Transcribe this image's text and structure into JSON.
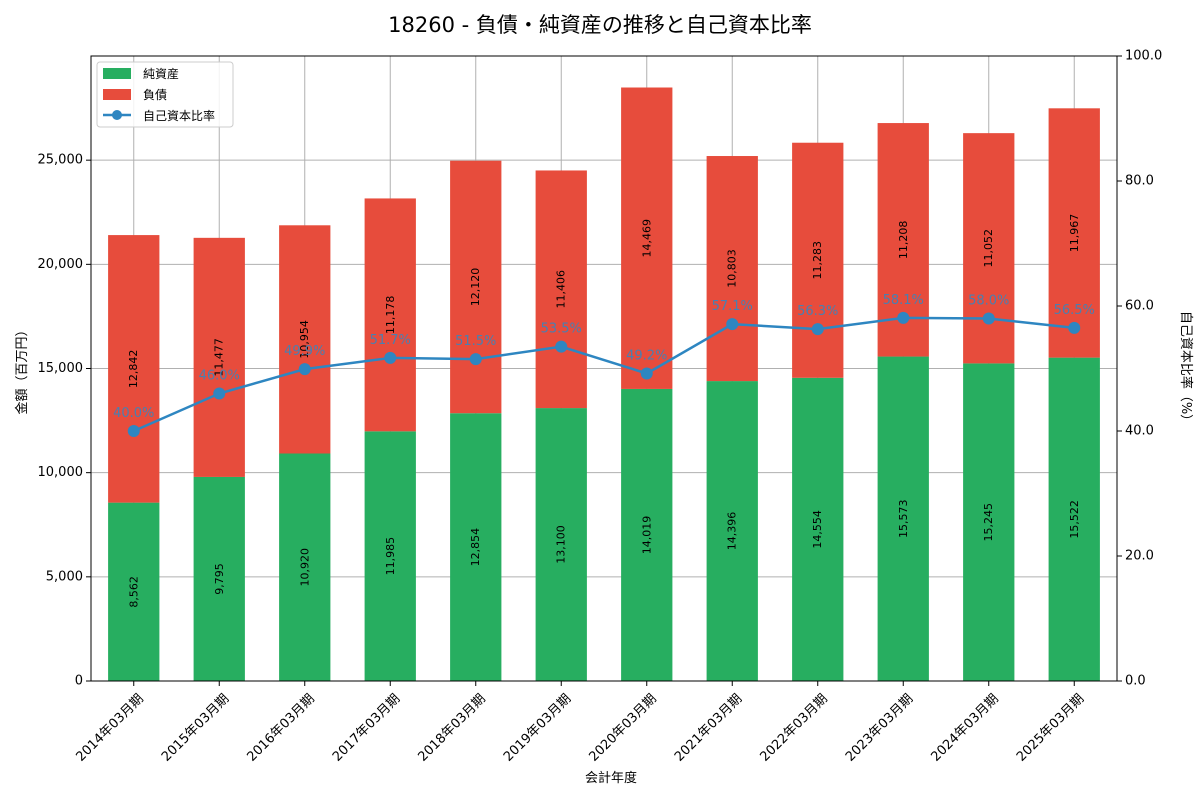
{
  "chart_data": {
    "type": "bar",
    "title": "18260 - 負債・純資産の推移と自己資本比率",
    "xlabel": "会計年度",
    "ylabel": "金額（百万円）",
    "y2label": "自己資本比率（%）",
    "stacked": true,
    "grid": true,
    "legend_position": "top-left",
    "ylim": [
      0,
      30000
    ],
    "y2lim": [
      0,
      100
    ],
    "yticks": [
      0,
      5000,
      10000,
      15000,
      20000,
      25000
    ],
    "ytick_labels": [
      "0",
      "5,000",
      "10,000",
      "15,000",
      "20,000",
      "25,000"
    ],
    "y2ticks": [
      0,
      20,
      40,
      60,
      80,
      100
    ],
    "y2tick_labels": [
      "0.0",
      "20.0",
      "40.0",
      "60.0",
      "80.0",
      "100.0"
    ],
    "categories": [
      "2014年03月期",
      "2015年03月期",
      "2016年03月期",
      "2017年03月期",
      "2018年03月期",
      "2019年03月期",
      "2020年03月期",
      "2021年03月期",
      "2022年03月期",
      "2023年03月期",
      "2024年03月期",
      "2025年03月期"
    ],
    "series": [
      {
        "name": "純資産",
        "kind": "bar",
        "color": "#27ae60",
        "values": [
          8562,
          9795,
          10920,
          11985,
          12854,
          13100,
          14019,
          14396,
          14554,
          15573,
          15245,
          15522
        ],
        "labels": [
          "8,562",
          "9,795",
          "10,920",
          "11,985",
          "12,854",
          "13,100",
          "14,019",
          "14,396",
          "14,554",
          "15,573",
          "15,245",
          "15,522"
        ]
      },
      {
        "name": "負債",
        "kind": "bar",
        "color": "#e74c3c",
        "values": [
          12842,
          11477,
          10954,
          11178,
          12120,
          11406,
          14469,
          10803,
          11283,
          11208,
          11052,
          11967
        ],
        "labels": [
          "12,842",
          "11,477",
          "10,954",
          "11,178",
          "12,120",
          "11,406",
          "14,469",
          "10,803",
          "11,283",
          "11,208",
          "11,052",
          "11,967"
        ]
      },
      {
        "name": "自己資本比率",
        "kind": "line",
        "axis": "right",
        "color": "#2e86c1",
        "values": [
          40.0,
          46.0,
          49.9,
          51.7,
          51.5,
          53.5,
          49.2,
          57.1,
          56.3,
          58.1,
          58.0,
          56.5
        ],
        "labels": [
          "40.0%",
          "46.0%",
          "49.9%",
          "51.7%",
          "51.5%",
          "53.5%",
          "49.2%",
          "57.1%",
          "56.3%",
          "58.1%",
          "58.0%",
          "56.5%"
        ]
      }
    ]
  }
}
